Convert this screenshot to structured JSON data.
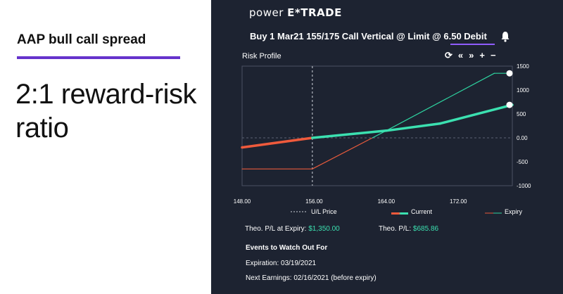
{
  "left": {
    "title": "AAP bull call spread",
    "subtitle": "2:1 reward-risk ratio"
  },
  "panel": {
    "brand_prefix": "power ",
    "brand_name": "E*TRADE",
    "order": "Buy 1 Mar21 155/175 Call Vertical @ Limit  @ 6.50 Debit",
    "risk_profile_title": "Risk Profile",
    "toolbar": [
      "⟳",
      "«",
      "»",
      "+",
      "−"
    ],
    "theo_expiry_label": "Theo. P/L at Expiry:",
    "theo_expiry_value": "$1,350.00",
    "theo_label": "Theo. P/L:",
    "theo_value": "$685.86",
    "events_title": "Events to Watch Out For",
    "expiration": "Expiration: 03/19/2021",
    "earnings": "Next Earnings: 02/16/2021 (before expiry)"
  },
  "colors": {
    "panel_bg": "#1d2331",
    "accent": "#6633cc",
    "current_green": "#3be0b0",
    "current_red": "#ef5a3c",
    "expiry_green": "#2ed3a0",
    "expiry_red": "#e55a3c"
  },
  "chart_data": {
    "type": "line",
    "x_ticks": [
      "148.00",
      "156.00",
      "164.00",
      "172.00"
    ],
    "y_ticks": [
      "1500",
      "1000",
      "500",
      "0.00",
      "-500",
      "-1000"
    ],
    "xlim": [
      148,
      178
    ],
    "ylim": [
      -1000,
      1500
    ],
    "underlying_price": 155.8,
    "legend": [
      "U/L Price",
      "Current",
      "Expiry"
    ],
    "series": [
      {
        "name": "Current",
        "x": [
          148,
          155.8,
          164,
          170,
          178
        ],
        "y": [
          -200,
          0,
          150,
          300,
          690
        ]
      },
      {
        "name": "Expiry",
        "x": [
          148,
          155.8,
          164,
          176,
          178
        ],
        "y": [
          -650,
          -650,
          150,
          1350,
          1350
        ]
      }
    ]
  }
}
